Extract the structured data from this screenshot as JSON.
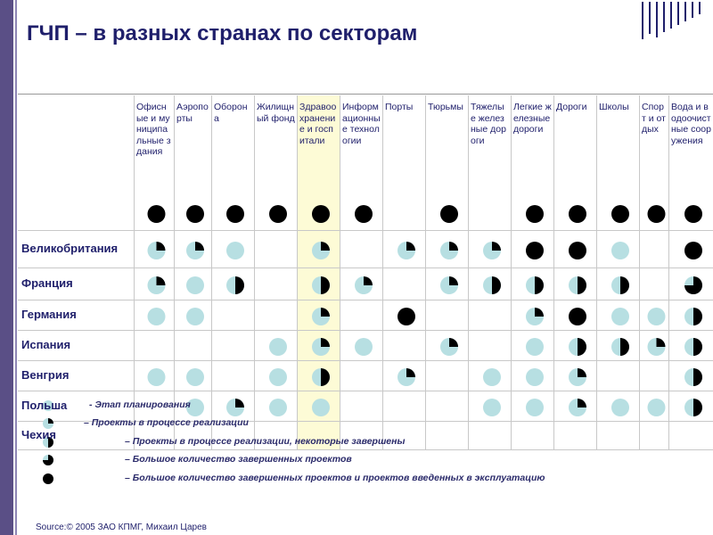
{
  "title": "ГЧП – в разных странах по секторам",
  "source": "Source:© 2005 ЗАО КПМГ, Михаил Царев",
  "colors": {
    "frame": "#5a4f86",
    "title": "#1f1f6b",
    "highlight_column": "#fdfbd6",
    "bubble_empty": "#b7dfe2",
    "bubble_filled": "#000000"
  },
  "icons": {
    "stage_0": "light-circle-icon",
    "stage_1": "quarter-circle-icon",
    "stage_2": "half-circle-icon",
    "stage_3": "three-quarter-circle-icon",
    "stage_4": "filled-circle-icon"
  },
  "table": {
    "sectors": [
      "Офисные и муниципальные здания",
      "Аэропорты",
      "Оборона",
      "Жилищный фонд",
      "Здравоохранение и госпитали",
      "Информационные технологии",
      "Порты",
      "Тюрьмы",
      "Тяжелые железные дороги",
      "Легкие железные дороги",
      "Дороги",
      "Школы",
      "Спорт и отдых",
      "Вода и водоочистные сооружения"
    ],
    "countries": [
      "Великобритания",
      "Франция",
      "Германия",
      "Испания",
      "Венгрия",
      "Польша",
      "Чехия"
    ],
    "highlighted_sector": 4,
    "overview_stages": [
      4,
      4,
      4,
      4,
      4,
      4,
      null,
      4,
      null,
      4,
      4,
      4,
      4,
      4
    ],
    "stages": [
      [
        1,
        1,
        0,
        null,
        1,
        null,
        1,
        1,
        1,
        4,
        4,
        0,
        null,
        4
      ],
      [
        1,
        0,
        2,
        null,
        2,
        1,
        null,
        1,
        2,
        2,
        2,
        2,
        null,
        3
      ],
      [
        0,
        0,
        null,
        null,
        1,
        null,
        4,
        null,
        null,
        1,
        4,
        0,
        0,
        2
      ],
      [
        null,
        null,
        null,
        0,
        1,
        0,
        null,
        1,
        null,
        0,
        2,
        2,
        1,
        2
      ],
      [
        0,
        0,
        null,
        0,
        2,
        null,
        1,
        null,
        0,
        0,
        1,
        null,
        null,
        2
      ],
      [
        null,
        0,
        1,
        0,
        0,
        null,
        null,
        null,
        0,
        0,
        1,
        0,
        0,
        2
      ],
      [
        null,
        null,
        null,
        null,
        null,
        null,
        null,
        null,
        null,
        null,
        null,
        null,
        null,
        null
      ]
    ]
  },
  "legend": [
    {
      "stage": 0,
      "text": "-  Этап планирования"
    },
    {
      "stage": 1,
      "text": "–  Проекты в процессе реализации"
    },
    {
      "stage": 2,
      "text": "–  Проекты в процессе реализации, некоторые завершены"
    },
    {
      "stage": 3,
      "text": "–  Большое количество завершенных проектов"
    },
    {
      "stage": 4,
      "text": "–  Большое количество завершенных  проектов и проектов введенных в эксплуатацию"
    }
  ]
}
